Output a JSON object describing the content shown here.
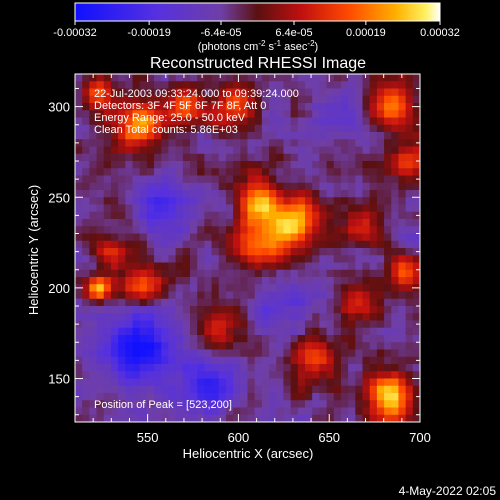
{
  "chart_data": {
    "type": "heatmap",
    "title": "Reconstructed RHESSI Image",
    "xlabel": "Heliocentric X (arcsec)",
    "ylabel": "Heliocentric Y (arcsec)",
    "xlim": [
      510,
      700
    ],
    "ylim": [
      126,
      318
    ],
    "x_ticks": [
      550,
      600,
      650,
      700
    ],
    "y_ticks": [
      150,
      200,
      250,
      300
    ],
    "colorbar": {
      "ticks": [
        "-0.00032",
        "-0.00019",
        "-6.4e-05",
        "6.4e-05",
        "0.00019",
        "0.00032"
      ],
      "tick_values": [
        -0.00032,
        -0.00019,
        -6.4e-05,
        6.4e-05,
        0.00019,
        0.00032
      ],
      "range": [
        -0.00032,
        0.00032
      ],
      "unit_prefix": "(photons cm",
      "unit_sup1": "-2",
      "unit_mid": " s",
      "unit_sup2": "-1",
      "unit_mid2": " asec",
      "unit_sup3": "-2",
      "unit_suffix": ")"
    },
    "annotations": {
      "line1": "22-Jul-2003 09:33:24.000 to 09:39:24.000",
      "line2": "Detectors: 3F 4F 5F 6F 7F 8F, Att 0",
      "line3": "Energy Range: 25.0 - 50.0 keV",
      "line4": "Clean    Total counts: 5.86E+03",
      "peak": "Position of Peak = [523,200]"
    },
    "grid": false,
    "peak_position": [
      523,
      200
    ],
    "sources": [
      {
        "x": 523,
        "y": 200,
        "amp": 0.00032,
        "sigma": 5
      },
      {
        "x": 632,
        "y": 235,
        "amp": 0.0003,
        "sigma": 10
      },
      {
        "x": 612,
        "y": 247,
        "amp": 0.00028,
        "sigma": 9
      },
      {
        "x": 612,
        "y": 222,
        "amp": 0.00024,
        "sigma": 9
      },
      {
        "x": 545,
        "y": 290,
        "amp": 0.00026,
        "sigma": 10
      },
      {
        "x": 572,
        "y": 302,
        "amp": 0.0002,
        "sigma": 8
      },
      {
        "x": 598,
        "y": 298,
        "amp": 0.00022,
        "sigma": 8
      },
      {
        "x": 685,
        "y": 300,
        "amp": 0.00024,
        "sigma": 9
      },
      {
        "x": 693,
        "y": 268,
        "amp": 0.0002,
        "sigma": 8
      },
      {
        "x": 668,
        "y": 233,
        "amp": 0.00016,
        "sigma": 7
      },
      {
        "x": 690,
        "y": 208,
        "amp": 0.00018,
        "sigma": 7
      },
      {
        "x": 665,
        "y": 190,
        "amp": 0.00016,
        "sigma": 8
      },
      {
        "x": 640,
        "y": 160,
        "amp": 0.00018,
        "sigma": 9
      },
      {
        "x": 590,
        "y": 178,
        "amp": 0.00016,
        "sigma": 8
      },
      {
        "x": 548,
        "y": 202,
        "amp": 0.0002,
        "sigma": 8
      },
      {
        "x": 530,
        "y": 220,
        "amp": 0.00018,
        "sigma": 6
      },
      {
        "x": 683,
        "y": 140,
        "amp": 0.0003,
        "sigma": 9
      },
      {
        "x": 522,
        "y": 307,
        "amp": 0.00018,
        "sigma": 6
      }
    ],
    "negative_regions": [
      {
        "x": 545,
        "y": 168,
        "amp": 0.00026,
        "sigma": 14
      },
      {
        "x": 582,
        "y": 145,
        "amp": 0.00018,
        "sigma": 12
      },
      {
        "x": 560,
        "y": 245,
        "amp": 0.00014,
        "sigma": 10
      },
      {
        "x": 625,
        "y": 190,
        "amp": 0.0001,
        "sigma": 10
      },
      {
        "x": 655,
        "y": 295,
        "amp": 0.00012,
        "sigma": 10
      }
    ],
    "background": -5e-05
  },
  "footer": {
    "date": "4-May-2022 02:05"
  }
}
